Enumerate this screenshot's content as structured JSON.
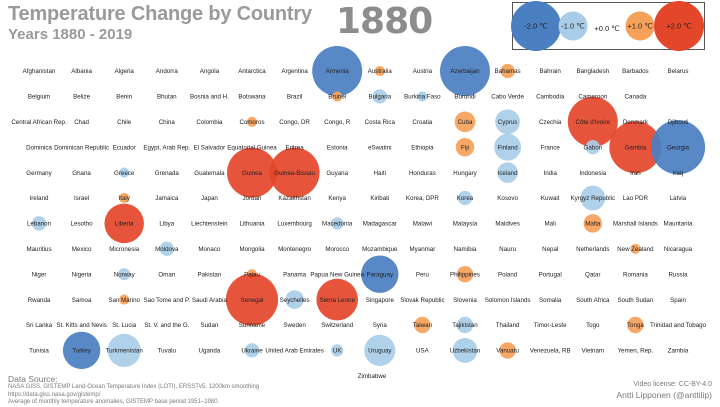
{
  "chart_data": {
    "type": "scatter",
    "title": "Temperature Change by Country",
    "subtitle": "Years 1880 - 2019",
    "year": "1880",
    "legend": [
      {
        "label": "-2.0 ℃",
        "value": -2.0
      },
      {
        "label": "-1.0 ℃",
        "value": -1.0
      },
      {
        "label": "+0.0 ℃",
        "value": 0.0
      },
      {
        "label": "+1.0 ℃",
        "value": 1.0
      },
      {
        "label": "+2.0 ℃",
        "value": 2.0
      }
    ],
    "colors": {
      "cold": "#4a7fc1",
      "cool": "#a9cde8",
      "warm": "#f6a15a",
      "hot": "#e4462a"
    },
    "rows": [
      [
        {
          "name": "Afghanistan",
          "value": 0
        },
        {
          "name": "Albania",
          "value": 0
        },
        {
          "name": "Algeria",
          "value": 0
        },
        {
          "name": "Andorra",
          "value": 0
        },
        {
          "name": "Angola",
          "value": 0
        },
        {
          "name": "Antarctica",
          "value": 0
        },
        {
          "name": "Argentina",
          "value": 0
        },
        {
          "name": "Armenia",
          "value": -2.0
        },
        {
          "name": "Australia",
          "value": 0.1
        },
        {
          "name": "Austria",
          "value": 0
        },
        {
          "name": "Azerbaijan",
          "value": -2.0
        },
        {
          "name": "Bahamas",
          "value": 0.3
        },
        {
          "name": "Bahrain",
          "value": 0
        },
        {
          "name": "Bangladesh",
          "value": 0
        },
        {
          "name": "Barbados",
          "value": 0
        },
        {
          "name": "Belarus",
          "value": 0
        }
      ],
      [
        {
          "name": "Belgium",
          "value": 0
        },
        {
          "name": "Belize",
          "value": 0
        },
        {
          "name": "Benin",
          "value": 0
        },
        {
          "name": "Bhutan",
          "value": 0
        },
        {
          "name": "Bosnia and H.",
          "value": 0
        },
        {
          "name": "Botswana",
          "value": 0
        },
        {
          "name": "Brazil",
          "value": 0
        },
        {
          "name": "Brunei",
          "value": 0.1
        },
        {
          "name": "Bulgaria",
          "value": -0.3
        },
        {
          "name": "Burkina Faso",
          "value": -0.1
        },
        {
          "name": "Burundi",
          "value": 0
        },
        {
          "name": "Cabo Verde",
          "value": 0
        },
        {
          "name": "Cambodia",
          "value": 0
        },
        {
          "name": "Cameroon",
          "value": 0
        },
        {
          "name": "Canada",
          "value": 0
        }
      ],
      [
        {
          "name": "Central African Rep.",
          "value": 0
        },
        {
          "name": "Chad",
          "value": 0
        },
        {
          "name": "Chile",
          "value": 0
        },
        {
          "name": "China",
          "value": 0
        },
        {
          "name": "Colombia",
          "value": 0
        },
        {
          "name": "Comoros",
          "value": 0.1
        },
        {
          "name": "Congo, DR",
          "value": 0
        },
        {
          "name": "Congo, R",
          "value": 0
        },
        {
          "name": "Costa Rica",
          "value": 0
        },
        {
          "name": "Croatia",
          "value": 0
        },
        {
          "name": "Cuba",
          "value": 0.6
        },
        {
          "name": "Cyprus",
          "value": -0.8
        },
        {
          "name": "Czechia",
          "value": 0
        },
        {
          "name": "Côte d'Ivoire",
          "value": 2.0
        },
        {
          "name": "Denmark",
          "value": 0
        },
        {
          "name": "Djibouti",
          "value": 0
        }
      ],
      [
        {
          "name": "Dominica",
          "value": 0
        },
        {
          "name": "Dominican Republic",
          "value": 0
        },
        {
          "name": "Ecuador",
          "value": 0
        },
        {
          "name": "Egypt, Arab Rep.",
          "value": 0
        },
        {
          "name": "El Salvador",
          "value": 0
        },
        {
          "name": "Equatorial Guinea",
          "value": 0
        },
        {
          "name": "Eritrea",
          "value": 0
        },
        {
          "name": "Estonia",
          "value": 0
        },
        {
          "name": "eSwatini",
          "value": 0
        },
        {
          "name": "Ethiopia",
          "value": 0
        },
        {
          "name": "Fiji",
          "value": 0.5
        },
        {
          "name": "Finland",
          "value": -0.9
        },
        {
          "name": "France",
          "value": 0
        },
        {
          "name": "Gabon",
          "value": -0.3
        },
        {
          "name": "Gambia",
          "value": 2.1
        },
        {
          "name": "Georgia",
          "value": -2.2
        }
      ],
      [
        {
          "name": "Germany",
          "value": 0
        },
        {
          "name": "Ghana",
          "value": 0
        },
        {
          "name": "Greece",
          "value": -0.1
        },
        {
          "name": "Grenada",
          "value": 0
        },
        {
          "name": "Guatemala",
          "value": 0
        },
        {
          "name": "Guinea",
          "value": 2.0
        },
        {
          "name": "Guinea-Bissau",
          "value": 2.0
        },
        {
          "name": "Guyana",
          "value": 0
        },
        {
          "name": "Haiti",
          "value": 0
        },
        {
          "name": "Honduras",
          "value": 0
        },
        {
          "name": "Hungary",
          "value": 0
        },
        {
          "name": "Iceland",
          "value": -0.6
        },
        {
          "name": "India",
          "value": 0
        },
        {
          "name": "Indonesia",
          "value": 0
        },
        {
          "name": "Iran",
          "value": 0
        },
        {
          "name": "Iraq",
          "value": 0
        }
      ],
      [
        {
          "name": "Ireland",
          "value": 0
        },
        {
          "name": "Israel",
          "value": 0
        },
        {
          "name": "Italy",
          "value": 0.1
        },
        {
          "name": "Jamaica",
          "value": 0
        },
        {
          "name": "Japan",
          "value": 0
        },
        {
          "name": "Jordan",
          "value": 0
        },
        {
          "name": "Kazakhstan",
          "value": 0
        },
        {
          "name": "Kenya",
          "value": 0
        },
        {
          "name": "Kiribati",
          "value": 0
        },
        {
          "name": "Korea, DPR",
          "value": 0
        },
        {
          "name": "Korea",
          "value": -0.3
        },
        {
          "name": "Kosovo",
          "value": 0
        },
        {
          "name": "Kuwait",
          "value": 0
        },
        {
          "name": "Kyrgyz Republic",
          "value": -0.8
        },
        {
          "name": "Lao PDR",
          "value": 0
        },
        {
          "name": "Latvia",
          "value": 0
        }
      ],
      [
        {
          "name": "Lebanon",
          "value": -0.3
        },
        {
          "name": "Lesotho",
          "value": 0
        },
        {
          "name": "Liberia",
          "value": 1.5
        },
        {
          "name": "Libya",
          "value": 0
        },
        {
          "name": "Liechtenstein",
          "value": 0
        },
        {
          "name": "Lithuania",
          "value": 0
        },
        {
          "name": "Luxembourg",
          "value": 0
        },
        {
          "name": "Macedonia",
          "value": -0.2
        },
        {
          "name": "Madagascar",
          "value": 0
        },
        {
          "name": "Malawi",
          "value": 0
        },
        {
          "name": "Malaysia",
          "value": 0
        },
        {
          "name": "Maldives",
          "value": 0
        },
        {
          "name": "Mali",
          "value": 0
        },
        {
          "name": "Malta",
          "value": 0.5
        },
        {
          "name": "Marshall Islands",
          "value": 0
        },
        {
          "name": "Mauritania",
          "value": 0
        }
      ],
      [
        {
          "name": "Mauritius",
          "value": 0
        },
        {
          "name": "Mexico",
          "value": 0
        },
        {
          "name": "Micronesia",
          "value": 0
        },
        {
          "name": "Moldova",
          "value": -0.3
        },
        {
          "name": "Monaco",
          "value": 0
        },
        {
          "name": "Mongolia",
          "value": 0
        },
        {
          "name": "Montenegro",
          "value": 0
        },
        {
          "name": "Morocco",
          "value": 0
        },
        {
          "name": "Mozambique",
          "value": 0
        },
        {
          "name": "Myanmar",
          "value": 0
        },
        {
          "name": "Namibia",
          "value": 0
        },
        {
          "name": "Nauru",
          "value": 0
        },
        {
          "name": "Nepal",
          "value": 0
        },
        {
          "name": "Netherlands",
          "value": 0
        },
        {
          "name": "New Zealand",
          "value": 0.1
        },
        {
          "name": "Nicaragua",
          "value": 0
        }
      ],
      [
        {
          "name": "Niger",
          "value": 0
        },
        {
          "name": "Nigeria",
          "value": 0
        },
        {
          "name": "Norway",
          "value": -0.2
        },
        {
          "name": "Oman",
          "value": 0
        },
        {
          "name": "Pakistan",
          "value": 0
        },
        {
          "name": "Palau",
          "value": 0.1
        },
        {
          "name": "Panama",
          "value": 0
        },
        {
          "name": "Papua New Guinea",
          "value": 0
        },
        {
          "name": "Paraguay",
          "value": -1.4
        },
        {
          "name": "Peru",
          "value": 0
        },
        {
          "name": "Philippines",
          "value": 0.4
        },
        {
          "name": "Poland",
          "value": 0
        },
        {
          "name": "Portugal",
          "value": 0
        },
        {
          "name": "Qatar",
          "value": 0
        },
        {
          "name": "Romania",
          "value": 0
        },
        {
          "name": "Russia",
          "value": 0
        }
      ],
      [
        {
          "name": "Rwanda",
          "value": 0
        },
        {
          "name": "Samoa",
          "value": 0
        },
        {
          "name": "San Marino",
          "value": 0.1
        },
        {
          "name": "Sao Tome and P.",
          "value": 0
        },
        {
          "name": "Saudi Arabia",
          "value": 0
        },
        {
          "name": "Senegal",
          "value": 2.1
        },
        {
          "name": "Seychelles",
          "value": -0.5
        },
        {
          "name": "Sierra Leone",
          "value": 1.6
        },
        {
          "name": "Singapore",
          "value": 0
        },
        {
          "name": "Slovak Republic",
          "value": 0
        },
        {
          "name": "Slovenia",
          "value": 0
        },
        {
          "name": "Solomon Islands",
          "value": 0
        },
        {
          "name": "Somalia",
          "value": 0
        },
        {
          "name": "South Africa",
          "value": 0
        },
        {
          "name": "South Sudan",
          "value": 0
        },
        {
          "name": "Spain",
          "value": 0
        }
      ],
      [
        {
          "name": "Sri Lanka",
          "value": 0
        },
        {
          "name": "St. Kitts and Nevis",
          "value": 0
        },
        {
          "name": "St. Lucia",
          "value": 0
        },
        {
          "name": "St. V. and the G.",
          "value": 0
        },
        {
          "name": "Sudan",
          "value": 0
        },
        {
          "name": "Suriname",
          "value": 0
        },
        {
          "name": "Sweden",
          "value": 0
        },
        {
          "name": "Switzerland",
          "value": 0
        },
        {
          "name": "Syria",
          "value": 0
        },
        {
          "name": "Taiwan",
          "value": 0.4
        },
        {
          "name": "Tajikistan",
          "value": -0.4
        },
        {
          "name": "Thailand",
          "value": 0
        },
        {
          "name": "Timor-Leste",
          "value": 0
        },
        {
          "name": "Togo",
          "value": 0
        },
        {
          "name": "Tonga",
          "value": 0.4
        },
        {
          "name": "Trinidad and Tobago",
          "value": 0
        }
      ],
      [
        {
          "name": "Tunisia",
          "value": 0
        },
        {
          "name": "Turkey",
          "value": -1.4
        },
        {
          "name": "Turkmenistan",
          "value": -1.2
        },
        {
          "name": "Tuvalu",
          "value": 0
        },
        {
          "name": "Uganda",
          "value": 0
        },
        {
          "name": "Ukraine",
          "value": -0.3
        },
        {
          "name": "United Arab Emirates",
          "value": 0
        },
        {
          "name": "UK",
          "value": -0.2
        },
        {
          "name": "Uruguay",
          "value": -1.1
        },
        {
          "name": "USA",
          "value": 0
        },
        {
          "name": "Uzbekistan",
          "value": -0.8
        },
        {
          "name": "Vanuatu",
          "value": 0.4
        },
        {
          "name": "Venezuela, RB",
          "value": 0
        },
        {
          "name": "Vietnam",
          "value": 0
        },
        {
          "name": "Yemen, Rep.",
          "value": 0
        },
        {
          "name": "Zambia",
          "value": 0
        }
      ],
      [
        {
          "name": "Zimbabwe",
          "value": 0
        }
      ]
    ]
  },
  "source": {
    "heading": "Data Source:",
    "lines": [
      "NASA GISS, GISTEMP Land-Ocean Temperature Index (LOTI), ERSSTv5, 1200km smoothing",
      "https://data.giss.nasa.gov/gistemp/",
      "Average of monthly temperature anomalies, GISTEMP base period 1951–1980."
    ]
  },
  "credit": {
    "license": "Video license: CC-BY-4.0",
    "author": "Antti Lipponen (@anttilip)"
  }
}
